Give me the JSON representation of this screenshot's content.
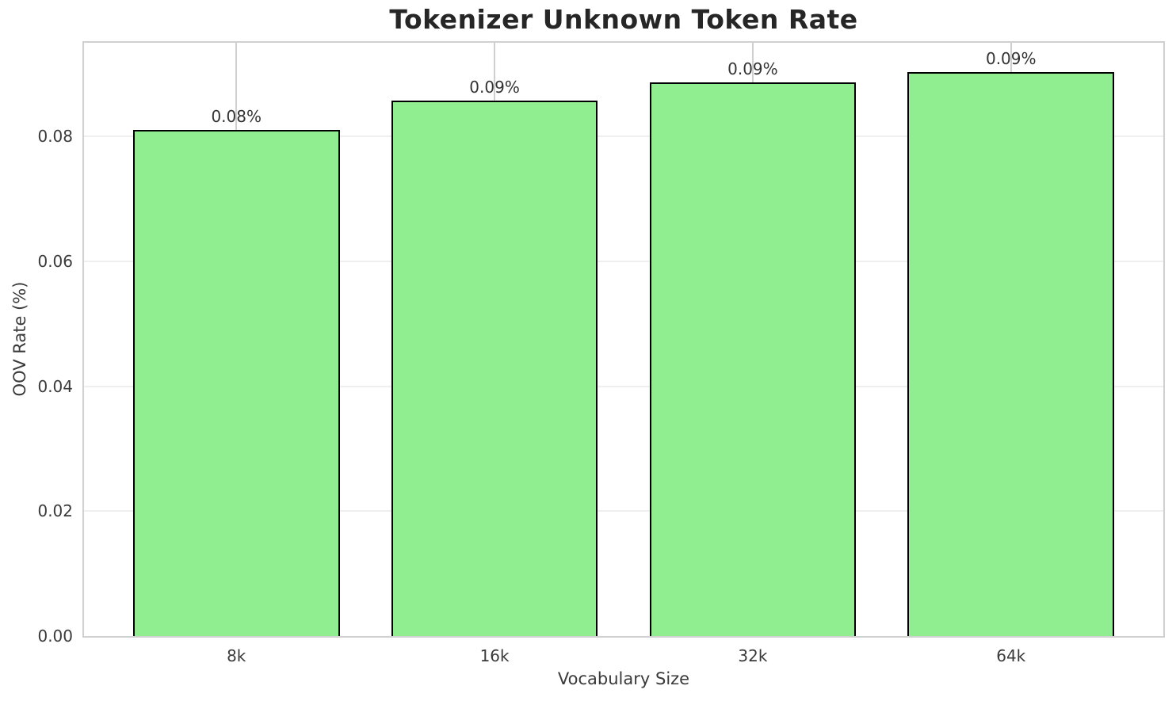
{
  "chart_data": {
    "type": "bar",
    "title": "Tokenizer Unknown Token Rate",
    "xlabel": "Vocabulary Size",
    "ylabel": "OOV Rate (%)",
    "categories": [
      "8k",
      "16k",
      "32k",
      "64k"
    ],
    "values": [
      0.081,
      0.0857,
      0.0887,
      0.0903
    ],
    "bar_labels": [
      "0.08%",
      "0.09%",
      "0.09%",
      "0.09%"
    ],
    "xlim": [
      -0.59,
      3.59
    ],
    "ylim": [
      0,
      0.095
    ],
    "bar_width": 0.8,
    "yticks": {
      "values": [
        0,
        0.02,
        0.04,
        0.06,
        0.08
      ],
      "labels": [
        "0.00",
        "0.02",
        "0.04",
        "0.06",
        "0.08"
      ]
    },
    "grid": true,
    "legend": false,
    "colors": {
      "bar_fill": "#90EE90",
      "bar_edge": "#000000",
      "grid_vertical": "#cfcfcf",
      "grid_horizontal": "#efefef",
      "spine": "#d0d0d0",
      "text": "#3a3a3a",
      "title": "#262626"
    }
  }
}
